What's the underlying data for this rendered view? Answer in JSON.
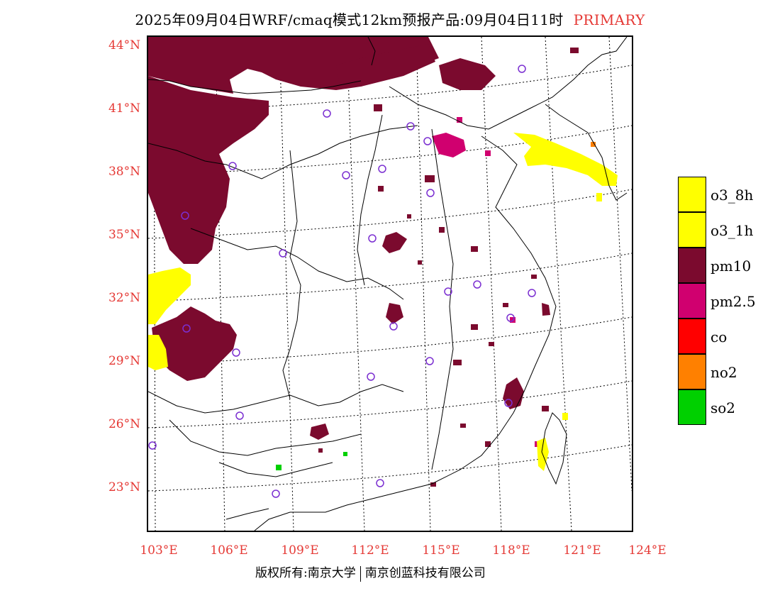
{
  "header": {
    "title": "2025年09月04日WRF/cmaq模式12km预报产品:09月04日11时",
    "subtitle": "PRIMARY"
  },
  "axes": {
    "lat_labels": [
      "44°N",
      "41°N",
      "38°N",
      "35°N",
      "32°N",
      "29°N",
      "26°N",
      "23°N"
    ],
    "lon_labels": [
      "103°E",
      "106°E",
      "109°E",
      "112°E",
      "115°E",
      "118°E",
      "121°E",
      "124°E"
    ]
  },
  "legend": {
    "items": [
      {
        "label": "o3_8h",
        "color": "#ffff00"
      },
      {
        "label": "o3_1h",
        "color": "#ffff00"
      },
      {
        "label": "pm10",
        "color": "#7b0a2e"
      },
      {
        "label": "pm2.5",
        "color": "#d0006f"
      },
      {
        "label": "co",
        "color": "#ff0000"
      },
      {
        "label": "no2",
        "color": "#ff8000"
      },
      {
        "label": "so2",
        "color": "#00d000"
      }
    ]
  },
  "footer": {
    "copyright": "版权所有:南京大学",
    "company": "南京创蓝科技有限公司"
  },
  "map_colors": {
    "pm10": "#7b0a2e",
    "pm25": "#d0006f",
    "o3": "#ffff00",
    "no2": "#ff8000",
    "so2": "#00d000",
    "station": "#7b2fd1"
  }
}
